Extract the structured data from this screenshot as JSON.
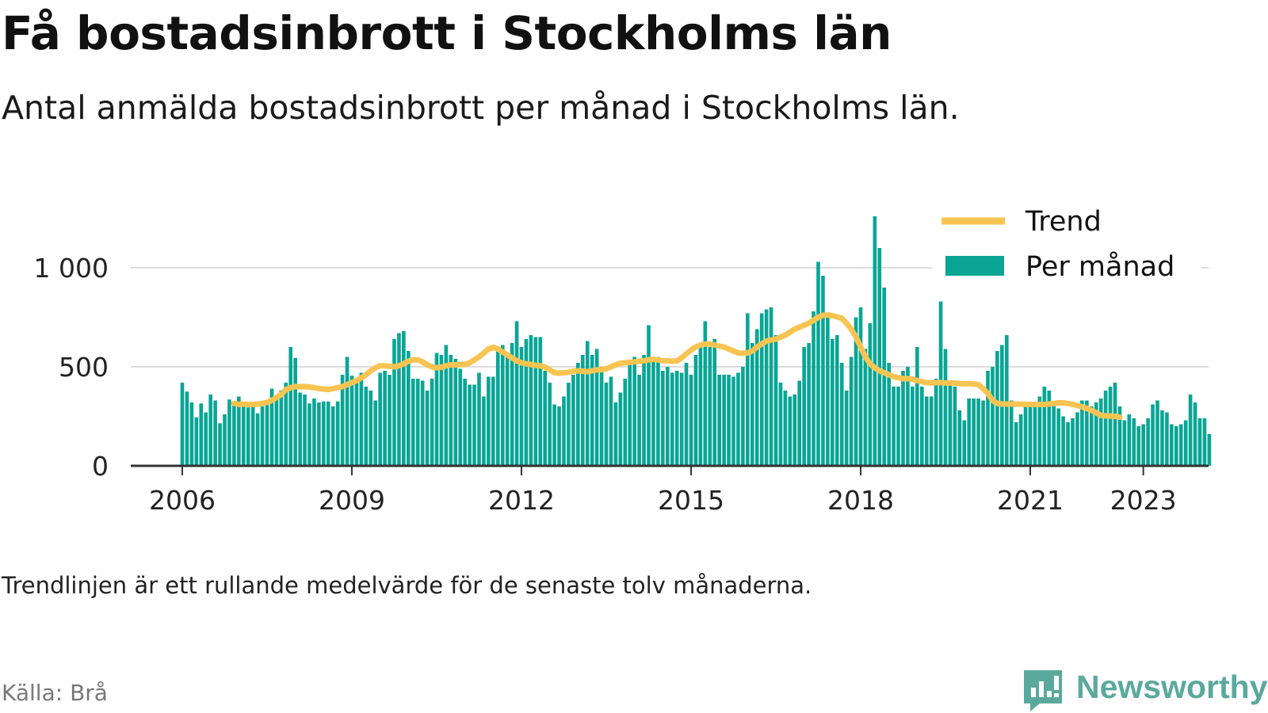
{
  "header": {
    "title": "Få bostadsinbrott i Stockholms län",
    "subtitle": "Antal anmälda bostadsinbrott per månad i Stockholms län."
  },
  "footer": {
    "note": "Trendlinjen är ett rullande medelvärde för de senaste tolv månaderna.",
    "source": "Källa: Brå",
    "brand": "Newsworthy"
  },
  "colors": {
    "bars": "#0aa595",
    "trend": "#f8c451",
    "grid": "#dddddd",
    "axis": "#333333",
    "brand": "#5aa99c"
  },
  "chart_data": {
    "type": "bar",
    "title": "Få bostadsinbrott i Stockholms län",
    "subtitle": "Antal anmälda bostadsinbrott per månad i Stockholms län.",
    "xlabel": "",
    "ylabel": "",
    "ylim": [
      0,
      1200
    ],
    "yticks": [
      0,
      500,
      1000
    ],
    "ytick_labels": [
      "0",
      "500",
      "1 000"
    ],
    "xticks": [
      2006,
      2009,
      2012,
      2015,
      2018,
      2021,
      2023
    ],
    "xtick_labels": [
      "2006",
      "2009",
      "2012",
      "2015",
      "2018",
      "2021",
      "2023"
    ],
    "grid": "horizontal",
    "legend": {
      "position": "top-right",
      "entries": [
        "Trend",
        "Per månad"
      ]
    },
    "start_month": "2006-01",
    "series": [
      {
        "name": "Per månad",
        "type": "bar",
        "values": [
          420,
          375,
          320,
          245,
          315,
          270,
          360,
          330,
          215,
          260,
          335,
          320,
          350,
          300,
          295,
          300,
          265,
          300,
          330,
          390,
          340,
          380,
          420,
          600,
          545,
          370,
          360,
          315,
          340,
          320,
          325,
          325,
          300,
          325,
          460,
          550,
          455,
          440,
          470,
          400,
          380,
          330,
          470,
          480,
          460,
          640,
          670,
          680,
          580,
          440,
          440,
          430,
          380,
          440,
          570,
          560,
          610,
          560,
          540,
          490,
          440,
          410,
          410,
          470,
          350,
          450,
          450,
          600,
          610,
          550,
          620,
          730,
          600,
          640,
          660,
          650,
          650,
          480,
          420,
          310,
          300,
          350,
          420,
          460,
          520,
          560,
          630,
          560,
          590,
          500,
          420,
          450,
          320,
          370,
          440,
          510,
          550,
          460,
          560,
          710,
          550,
          550,
          480,
          500,
          470,
          480,
          470,
          520,
          460,
          560,
          620,
          730,
          600,
          640,
          460,
          460,
          460,
          450,
          470,
          500,
          770,
          620,
          690,
          770,
          790,
          800,
          660,
          420,
          380,
          350,
          360,
          430,
          600,
          620,
          780,
          1030,
          960,
          760,
          640,
          660,
          520,
          380,
          550,
          750,
          800,
          590,
          720,
          1260,
          1100,
          900,
          520,
          400,
          400,
          480,
          500,
          400,
          600,
          400,
          350,
          350,
          440,
          830,
          590,
          430,
          400,
          280,
          230,
          340,
          340,
          340,
          330,
          480,
          500,
          580,
          610,
          660,
          330,
          220,
          260,
          310,
          310,
          300,
          350,
          400,
          380,
          320,
          290,
          250,
          220,
          240,
          270,
          330,
          330,
          300,
          320,
          340,
          380,
          400,
          420,
          300,
          230,
          260,
          240,
          200,
          210,
          240,
          310,
          330,
          280,
          270,
          210,
          200,
          210,
          230,
          360,
          320,
          240,
          240,
          160
        ]
      },
      {
        "name": "Trend",
        "type": "line",
        "start_month": "2006-12",
        "values": [
          315,
          310,
          312,
          310,
          310,
          312,
          315,
          320,
          330,
          345,
          360,
          385,
          395,
          400,
          400,
          400,
          398,
          395,
          390,
          388,
          385,
          390,
          395,
          400,
          410,
          420,
          430,
          445,
          460,
          480,
          495,
          505,
          505,
          502,
          500,
          505,
          515,
          528,
          535,
          535,
          525,
          510,
          500,
          495,
          498,
          505,
          510,
          510,
          512,
          512,
          520,
          535,
          550,
          570,
          590,
          598,
          590,
          575,
          560,
          545,
          530,
          520,
          515,
          512,
          508,
          505,
          498,
          485,
          470,
          468,
          470,
          472,
          478,
          480,
          478,
          475,
          480,
          485,
          485,
          490,
          500,
          510,
          518,
          520,
          522,
          525,
          528,
          530,
          535,
          538,
          535,
          530,
          530,
          528,
          530,
          545,
          565,
          585,
          600,
          610,
          615,
          615,
          610,
          605,
          600,
          590,
          580,
          570,
          568,
          570,
          580,
          600,
          615,
          630,
          635,
          640,
          650,
          660,
          675,
          690,
          700,
          710,
          720,
          735,
          750,
          760,
          762,
          758,
          752,
          745,
          720,
          690,
          650,
          600,
          550,
          515,
          495,
          480,
          470,
          460,
          450,
          445,
          440,
          440,
          438,
          430,
          425,
          420,
          418,
          420,
          420,
          418,
          418,
          418,
          415,
          415,
          415,
          413,
          410,
          390,
          365,
          330,
          315,
          312,
          312,
          312,
          312,
          312,
          310,
          310,
          310,
          310,
          310,
          312,
          315,
          318,
          318,
          315,
          310,
          305,
          298,
          290,
          280,
          268,
          255,
          252,
          252,
          250,
          245
        ]
      }
    ]
  }
}
